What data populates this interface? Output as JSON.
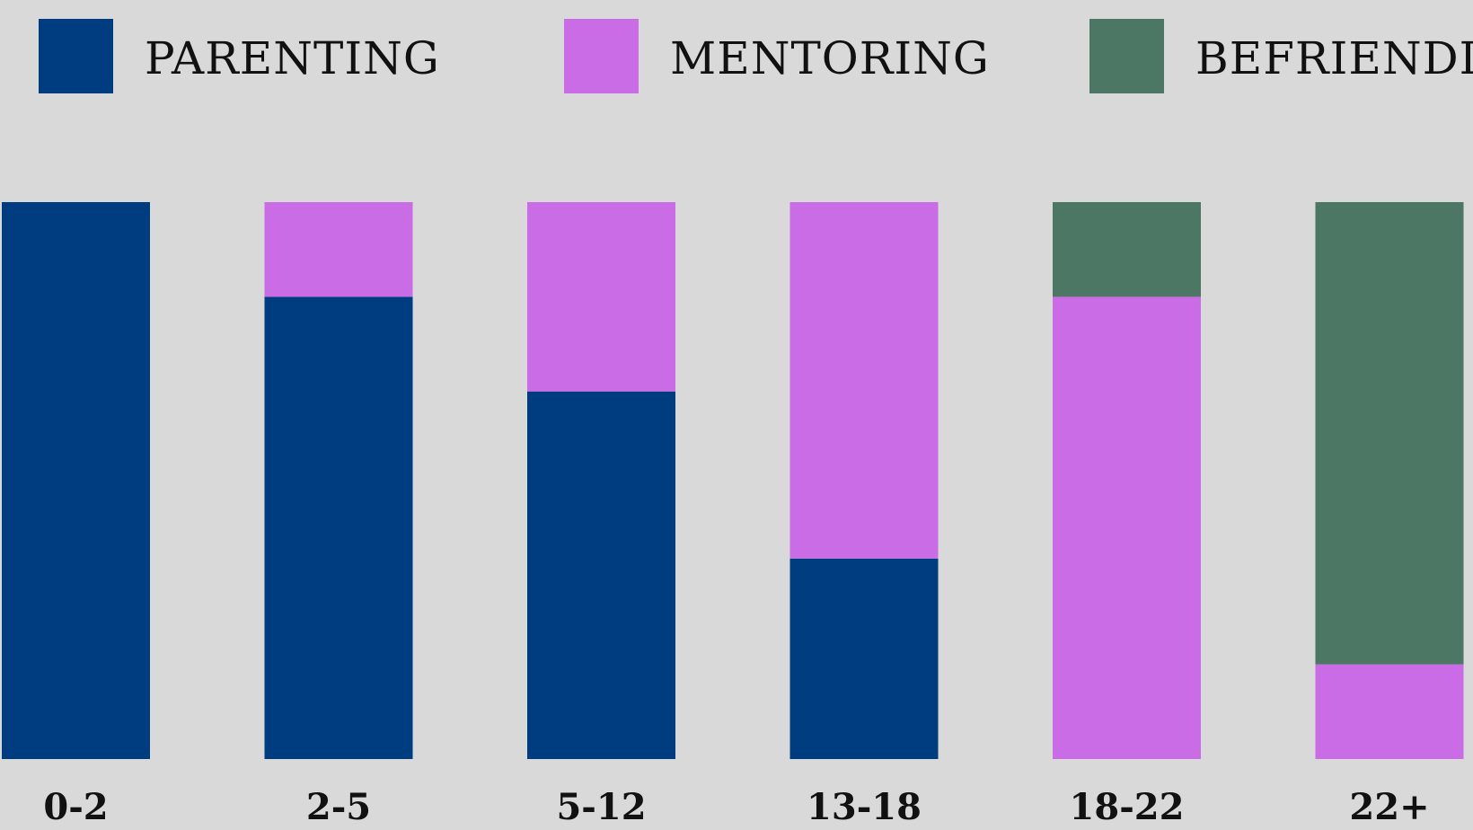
{
  "chart_data": {
    "type": "bar",
    "stacked": true,
    "categories": [
      "0-2",
      "2-5",
      "5-12",
      "13-18",
      "18-22",
      "22+"
    ],
    "series": [
      {
        "name": "PARENTING",
        "color": "#003d80",
        "values": [
          100,
          83,
          66,
          36,
          0,
          0
        ]
      },
      {
        "name": "MENTORING",
        "color": "#c96ce6",
        "values": [
          0,
          17,
          34,
          64,
          83,
          17
        ]
      },
      {
        "name": "BEFRIENDING",
        "color": "#4d7765",
        "values": [
          0,
          0,
          0,
          0,
          17,
          83
        ]
      }
    ],
    "ylim": [
      0,
      100
    ],
    "title": "",
    "xlabel": "",
    "ylabel": "",
    "grid": false,
    "legend": "top"
  },
  "colors": {
    "background": "#d9d9d9",
    "text": "#111111"
  }
}
